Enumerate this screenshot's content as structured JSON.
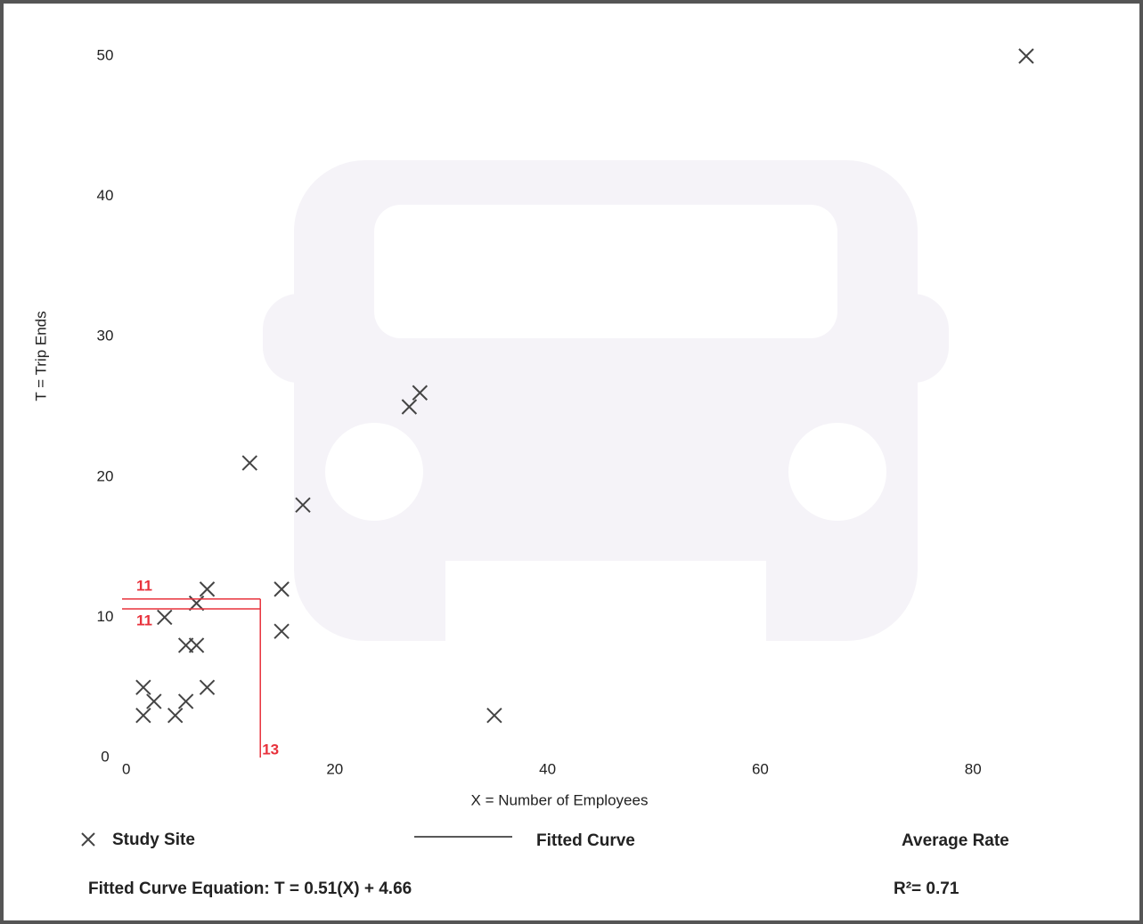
{
  "chart_data": {
    "type": "scatter",
    "x_label": "X = Number of Employees",
    "y_label": "T = Trip Ends",
    "xlim": [
      0,
      90
    ],
    "ylim": [
      0,
      50
    ],
    "xticks": [
      0,
      20,
      40,
      60,
      80
    ],
    "yticks": [
      0,
      10,
      20,
      30,
      40,
      50
    ],
    "series": [
      {
        "name": "Study Site",
        "color": "#444444",
        "x": [
          85,
          28,
          27,
          12,
          17,
          15,
          8,
          7,
          4,
          15,
          6,
          7,
          2,
          8,
          3,
          6,
          2,
          5,
          35
        ],
        "values": [
          50,
          26,
          25,
          21,
          18,
          12,
          12,
          11,
          10,
          9,
          8,
          8,
          5,
          5,
          4,
          4,
          3,
          3,
          3
        ]
      }
    ],
    "legend_extra": [
      "Fitted Curve",
      "Average Rate"
    ],
    "equation": "Fitted Curve Equation: T = 0.51(X) + 4.66",
    "r_squared": "R²= 0.71",
    "annotations": {
      "color": "#e8323c",
      "hlines": [
        {
          "value": 11.3,
          "label": "11"
        },
        {
          "value": 10.6,
          "label": "11"
        }
      ],
      "vline": {
        "value": 13,
        "label": "13"
      }
    }
  }
}
